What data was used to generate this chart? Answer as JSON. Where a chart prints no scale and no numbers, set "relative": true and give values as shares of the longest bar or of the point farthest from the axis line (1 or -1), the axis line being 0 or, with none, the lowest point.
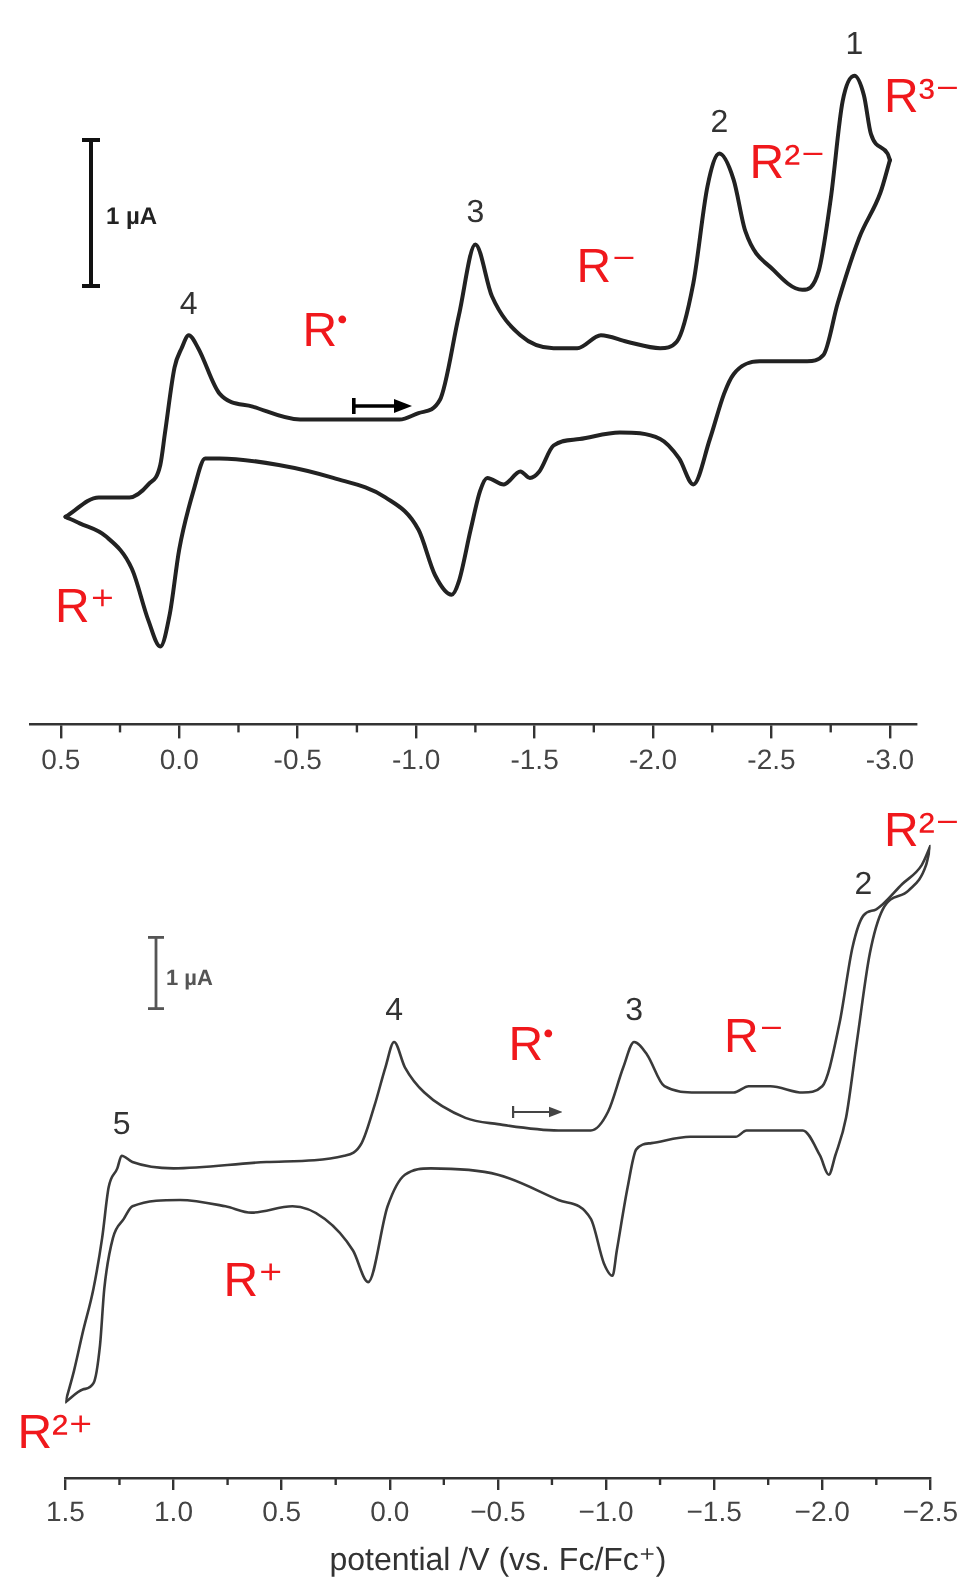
{
  "chart_data": [
    {
      "type": "line",
      "relative": true,
      "xlim": [
        0.63,
        -3.11
      ],
      "xticks": [
        0.5,
        {
          "value": 0.25,
          "label": null
        },
        {
          "value": 0,
          "label": "0.0"
        },
        {
          "value": -0.25,
          "label": null
        },
        -0.5,
        {
          "value": -0.75,
          "label": null
        },
        {
          "value": -1,
          "label": "-1.0"
        },
        {
          "value": -1.25,
          "label": null
        },
        -1.5,
        {
          "value": -1.75,
          "label": null
        },
        {
          "value": -2,
          "label": "-2.0"
        },
        {
          "value": -2.25,
          "label": null
        },
        -2.5,
        {
          "value": -2.75,
          "label": null
        },
        {
          "value": -3,
          "label": "-3.0"
        }
      ],
      "tick_labels": "x",
      "grid": false,
      "legend": false,
      "marker": "none",
      "line_style": "solid",
      "series": [
        {
          "color": "#222222",
          "x": [
            0.48,
            0.34,
            0.21,
            0.13,
            0.08,
            0.06,
            0.02,
            -0.01,
            -0.04,
            -0.08,
            -0.17,
            -0.31,
            -0.51,
            -0.73,
            -0.93,
            -1.01,
            -1.1,
            -1.18,
            -1.25,
            -1.32,
            -1.44,
            -1.58,
            -1.68,
            -1.78,
            -1.89,
            -2.03,
            -2.1,
            -2.17,
            -2.23,
            -2.28,
            -2.34,
            -2.39,
            -2.51,
            -2.63,
            -2.7,
            -2.75,
            -2.8,
            -2.85,
            -2.89,
            -2.92,
            -2.99,
            -3.0
          ],
          "values": [
            0.32,
            0.35,
            0.35,
            0.37,
            0.4,
            0.45,
            0.55,
            0.58,
            0.6,
            0.58,
            0.51,
            0.49,
            0.47,
            0.47,
            0.47,
            0.48,
            0.5,
            0.63,
            0.74,
            0.66,
            0.6,
            0.58,
            0.58,
            0.6,
            0.59,
            0.58,
            0.59,
            0.68,
            0.83,
            0.88,
            0.84,
            0.76,
            0.7,
            0.67,
            0.7,
            0.81,
            0.96,
            1,
            0.97,
            0.91,
            0.88,
            0.87
          ]
        },
        {
          "color": "#222222",
          "x": [
            -3.0,
            -2.96,
            -2.87,
            -2.78,
            -2.72,
            -2.65,
            -2.45,
            -2.34,
            -2.3,
            -2.24,
            -2.17,
            -2.11,
            -2.03,
            -1.86,
            -1.69,
            -1.58,
            -1.52,
            -1.48,
            -1.44,
            -1.37,
            -1.3,
            -1.27,
            -1.23,
            -1.18,
            -1.15,
            -1.08,
            -1.01,
            -0.87,
            -0.65,
            -0.42,
            -0.17,
            -0.11,
            -0.06,
            0,
            0.04,
            0.08,
            0.13,
            0.2,
            0.31,
            0.42,
            0.48
          ],
          "values": [
            0.87,
            0.82,
            0.75,
            0.65,
            0.57,
            0.56,
            0.56,
            0.54,
            0.51,
            0.44,
            0.37,
            0.41,
            0.44,
            0.45,
            0.44,
            0.43,
            0.39,
            0.38,
            0.39,
            0.37,
            0.38,
            0.36,
            0.3,
            0.22,
            0.2,
            0.23,
            0.3,
            0.35,
            0.38,
            0.4,
            0.41,
            0.41,
            0.36,
            0.27,
            0.17,
            0.12,
            0.16,
            0.24,
            0.29,
            0.31,
            0.32
          ]
        }
      ],
      "annotations": [
        "1 µA",
        "R$^{•}$",
        "R⁺",
        "R⁻",
        "R²⁻",
        "R³⁻",
        {
          "text": "4",
          "x": -0.04,
          "y": 0.6
        },
        {
          "text": "3",
          "x": -1.25,
          "y": 0.74
        },
        {
          "text": "2",
          "x": -2.28,
          "y": 0.88
        },
        {
          "text": "1",
          "x": -2.85,
          "y": 1
        }
      ]
    },
    {
      "type": "line",
      "relative": true,
      "xlim": [
        1.5,
        -2.5
      ],
      "xlabel": "potential /V (vs. Fc/Fc⁺)",
      "xticks": [
        1.5,
        {
          "value": 1.25,
          "label": null
        },
        {
          "value": 1,
          "label": "1.0"
        },
        {
          "value": 0.75,
          "label": null
        },
        0.5,
        {
          "value": 0.25,
          "label": null
        },
        {
          "value": 0,
          "label": "0.0"
        },
        {
          "value": -0.25,
          "label": null
        },
        {
          "value": -0.5,
          "label": "−0.5"
        },
        {
          "value": -0.75,
          "label": null
        },
        {
          "value": -1,
          "label": "−1.0"
        },
        {
          "value": -1.25,
          "label": null
        },
        {
          "value": -1.5,
          "label": "−1.5"
        },
        {
          "value": -1.75,
          "label": null
        },
        {
          "value": -2,
          "label": "−2.0"
        },
        {
          "value": -2.25,
          "label": null
        },
        {
          "value": -2.5,
          "label": "−2.5"
        }
      ],
      "tick_labels": "x",
      "grid": false,
      "legend": false,
      "marker": "none",
      "line_style": "solid",
      "series": [
        {
          "color": "#3a3a3a",
          "x": [
            1.5,
            1.46,
            1.42,
            1.37,
            1.33,
            1.3,
            1.26,
            1.24,
            1.19,
            1.0,
            0.57,
            0.21,
            0.13,
            0.07,
            0.02,
            -0.02,
            -0.07,
            -0.16,
            -0.35,
            -0.5,
            -0.78,
            -0.93,
            -1.01,
            -1.08,
            -1.13,
            -1.19,
            -1.27,
            -1.42,
            -1.59,
            -1.66,
            -1.76,
            -1.91,
            -2.0,
            -2.08,
            -2.14,
            -2.19,
            -2.25,
            -2.37,
            -2.46,
            -2.5
          ],
          "values": [
            0.12,
            0.17,
            0.23,
            0.3,
            0.38,
            0.46,
            0.49,
            0.51,
            0.5,
            0.49,
            0.5,
            0.51,
            0.53,
            0.59,
            0.65,
            0.69,
            0.65,
            0.61,
            0.57,
            0.56,
            0.55,
            0.55,
            0.58,
            0.65,
            0.69,
            0.67,
            0.62,
            0.61,
            0.61,
            0.62,
            0.62,
            0.61,
            0.62,
            0.72,
            0.84,
            0.89,
            0.9,
            0.94,
            0.97,
            1
          ]
        },
        {
          "color": "#3a3a3a",
          "x": [
            -2.5,
            -2.48,
            -2.4,
            -2.28,
            -2.22,
            -2.16,
            -2.11,
            -2.06,
            -2.03,
            -1.99,
            -1.91,
            -1.76,
            -1.65,
            -1.6,
            -1.39,
            -1.21,
            -1.14,
            -1.1,
            -1.05,
            -1.03,
            -0.99,
            -0.93,
            -0.78,
            -0.5,
            -0.19,
            -0.07,
            0.01,
            0.1,
            0.17,
            0.3,
            0.45,
            0.64,
            0.76,
            0.97,
            1.19,
            1.23,
            1.28,
            1.32,
            1.34,
            1.37,
            1.42,
            1.5
          ],
          "values": [
            1,
            0.97,
            0.93,
            0.9,
            0.83,
            0.69,
            0.57,
            0.51,
            0.48,
            0.51,
            0.55,
            0.55,
            0.55,
            0.54,
            0.54,
            0.53,
            0.52,
            0.46,
            0.36,
            0.32,
            0.34,
            0.41,
            0.44,
            0.48,
            0.49,
            0.48,
            0.43,
            0.31,
            0.36,
            0.41,
            0.43,
            0.42,
            0.43,
            0.44,
            0.43,
            0.41,
            0.38,
            0.3,
            0.21,
            0.15,
            0.14,
            0.12
          ]
        }
      ],
      "annotations": [
        "1 µA",
        "R$^{•}$",
        "R⁻",
        "R²⁻",
        "R⁺",
        "R²⁺",
        {
          "text": "5",
          "x": 1.24,
          "y": 0.51
        },
        {
          "text": "4",
          "x": -0.02,
          "y": 0.69
        },
        {
          "text": "3",
          "x": -1.13,
          "y": 0.69
        },
        {
          "text": "2",
          "x": -2.19,
          "y": 0.89
        }
      ]
    }
  ]
}
